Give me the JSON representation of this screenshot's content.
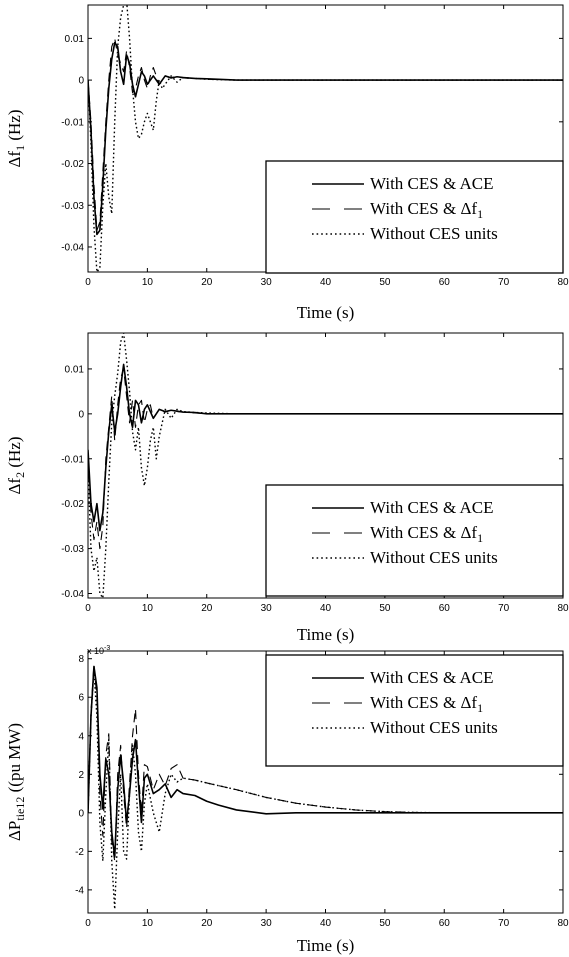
{
  "chart_data": [
    {
      "type": "line",
      "ylabel": "Δf1 (Hz)",
      "ylabel_parts": {
        "main": "Δf",
        "sub": "1",
        "unit": " (Hz)"
      },
      "xlabel": "Time (s)",
      "xlim": [
        0,
        80
      ],
      "ylim": [
        -0.046,
        0.018
      ],
      "xticks": [
        0,
        10,
        20,
        30,
        40,
        50,
        60,
        70,
        80
      ],
      "yticks": [
        0.01,
        0,
        -0.01,
        -0.02,
        -0.03,
        -0.04
      ],
      "ytick_labels": [
        "0.01",
        "0",
        "-0.01",
        "-0.02",
        "-0.03",
        "-0.04"
      ],
      "grid": false,
      "legend_position": "bottom-right",
      "legend": [
        {
          "main": "With CES & ACE",
          "sub": "",
          "style": "solid"
        },
        {
          "main": "With CES & Δf",
          "sub": "1",
          "style": "dashed"
        },
        {
          "main": "Without CES units",
          "sub": "",
          "style": "dotted"
        }
      ],
      "series": [
        {
          "style": "solid",
          "x": [
            0,
            0.5,
            1,
            1.5,
            2,
            2.5,
            3,
            3.5,
            4,
            4.5,
            5,
            5.5,
            6,
            6.5,
            7,
            7.5,
            8,
            8.5,
            9,
            9.5,
            10,
            11,
            12,
            13,
            14,
            15,
            16,
            18,
            20,
            25,
            30,
            40,
            50,
            60,
            70,
            80
          ],
          "y": [
            0,
            -0.012,
            -0.028,
            -0.037,
            -0.036,
            -0.025,
            -0.012,
            -0.002,
            0.005,
            0.009,
            0.008,
            0.002,
            -0.001,
            0.006,
            0.004,
            -0.001,
            -0.004,
            -0.001,
            0.002,
            0.001,
            -0.001,
            0.001,
            -0.001,
            0.001,
            0.0005,
            0.0008,
            0.0006,
            0.0004,
            0.0003,
            0,
            0,
            0,
            0,
            0,
            0,
            0
          ]
        },
        {
          "style": "dashed",
          "x": [
            0,
            0.5,
            1,
            1.5,
            2,
            2.5,
            3,
            3.5,
            4,
            4.5,
            5,
            5.5,
            6,
            6.5,
            7,
            7.5,
            8,
            8.5,
            9,
            9.5,
            10,
            10.5,
            11,
            11.5,
            12,
            13,
            14,
            15,
            16,
            18,
            20,
            25,
            30,
            40,
            50,
            60,
            70,
            80
          ],
          "y": [
            0,
            -0.01,
            -0.025,
            -0.036,
            -0.034,
            -0.022,
            -0.01,
            0,
            0.008,
            0.01,
            0.006,
            0.004,
            0.002,
            0.007,
            0.003,
            -0.003,
            -0.002,
            0.001,
            0.003,
            0,
            -0.002,
            0.001,
            0.003,
            0.001,
            -0.001,
            0.001,
            0.0006,
            0.0009,
            0.0005,
            0.0004,
            0.0002,
            0,
            0,
            0,
            0,
            0,
            0,
            0
          ]
        },
        {
          "style": "dotted",
          "x": [
            0,
            0.5,
            1,
            1.5,
            2,
            2.5,
            3,
            3.5,
            4,
            4.5,
            5,
            5.5,
            6,
            6.5,
            7,
            7.5,
            8,
            8.5,
            9,
            9.5,
            10,
            10.5,
            11,
            11.5,
            12,
            12.5,
            13,
            14,
            15,
            16,
            18,
            20,
            25,
            30,
            40,
            50,
            60,
            70,
            80
          ],
          "y": [
            0,
            -0.015,
            -0.035,
            -0.046,
            -0.045,
            -0.03,
            -0.02,
            -0.028,
            -0.032,
            -0.01,
            0.008,
            0.015,
            0.018,
            0.019,
            0.01,
            -0.002,
            -0.01,
            -0.014,
            -0.013,
            -0.01,
            -0.008,
            -0.01,
            -0.012,
            -0.005,
            0,
            -0.002,
            -0.001,
            0.001,
            -0.0005,
            0.0006,
            0.0004,
            0.0002,
            0,
            0,
            0,
            0,
            0,
            0,
            0
          ]
        }
      ]
    },
    {
      "type": "line",
      "ylabel": "Δf2 (Hz)",
      "ylabel_parts": {
        "main": "Δf",
        "sub": "2",
        "unit": " (Hz)"
      },
      "xlabel": "Time (s)",
      "xlim": [
        0,
        80
      ],
      "ylim": [
        -0.041,
        0.018
      ],
      "xticks": [
        0,
        10,
        20,
        30,
        40,
        50,
        60,
        70,
        80
      ],
      "yticks": [
        0.01,
        0,
        -0.01,
        -0.02,
        -0.03,
        -0.04
      ],
      "ytick_labels": [
        "0.01",
        "0",
        "-0.01",
        "-0.02",
        "-0.03",
        "-0.04"
      ],
      "grid": false,
      "legend_position": "bottom-right",
      "legend": [
        {
          "main": "With CES & ACE",
          "sub": "",
          "style": "solid"
        },
        {
          "main": "With CES & Δf",
          "sub": "1",
          "style": "dashed"
        },
        {
          "main": "Without CES units",
          "sub": "",
          "style": "dotted"
        }
      ],
      "series": [
        {
          "style": "solid",
          "x": [
            0,
            0.5,
            1,
            1.5,
            2,
            2.5,
            3,
            3.5,
            4,
            4.5,
            5,
            5.5,
            6,
            6.5,
            7,
            7.5,
            8,
            8.5,
            9,
            9.5,
            10,
            11,
            12,
            13,
            14,
            15,
            16,
            18,
            20,
            25,
            30,
            40,
            50,
            60,
            70,
            80
          ],
          "y": [
            -0.008,
            -0.02,
            -0.024,
            -0.02,
            -0.026,
            -0.022,
            -0.012,
            -0.004,
            0.002,
            -0.004,
            0,
            0.006,
            0.011,
            0.006,
            0,
            -0.003,
            0.003,
            0.002,
            -0.002,
            0.001,
            0.002,
            -0.001,
            0.001,
            0.0005,
            0.0008,
            0.0006,
            0.0004,
            0.0003,
            0,
            0,
            0,
            0,
            0,
            0,
            0,
            0
          ]
        },
        {
          "style": "dashed",
          "x": [
            0,
            0.5,
            1,
            1.5,
            2,
            2.5,
            3,
            3.5,
            4,
            4.5,
            5,
            5.5,
            6,
            6.5,
            7,
            7.5,
            8,
            8.5,
            9,
            9.5,
            10,
            10.5,
            11,
            12,
            13,
            14,
            15,
            16,
            18,
            20,
            25,
            30,
            40,
            50,
            60,
            70,
            80
          ],
          "y": [
            -0.01,
            -0.022,
            -0.028,
            -0.024,
            -0.03,
            -0.025,
            -0.01,
            -0.003,
            0.004,
            -0.006,
            0.002,
            0.008,
            0.01,
            0.004,
            -0.002,
            0.003,
            -0.003,
            0.002,
            0.003,
            -0.002,
            0.001,
            0.002,
            -0.001,
            0.001,
            0.0004,
            0.0008,
            0.0005,
            0.0004,
            0.0002,
            0,
            0,
            0,
            0,
            0,
            0,
            0,
            0
          ]
        },
        {
          "style": "dotted",
          "x": [
            0,
            0.5,
            1,
            1.5,
            2,
            2.5,
            3,
            3.5,
            4,
            4.5,
            5,
            5.5,
            6,
            6.5,
            7,
            7.5,
            8,
            8.5,
            9,
            9.5,
            10,
            10.5,
            11,
            11.5,
            12,
            12.5,
            13,
            14,
            15,
            16,
            18,
            20,
            25,
            30,
            40,
            50,
            60,
            70,
            80
          ],
          "y": [
            -0.012,
            -0.03,
            -0.035,
            -0.032,
            -0.04,
            -0.041,
            -0.03,
            -0.015,
            -0.002,
            0.004,
            0.009,
            0.016,
            0.018,
            0.012,
            0.005,
            -0.004,
            -0.008,
            -0.003,
            -0.012,
            -0.016,
            -0.012,
            -0.006,
            -0.003,
            -0.01,
            -0.005,
            -0.002,
            0.001,
            -0.001,
            0.001,
            0.0005,
            0.0003,
            0.0002,
            0,
            0,
            0,
            0,
            0,
            0,
            0
          ]
        }
      ]
    },
    {
      "type": "line",
      "ylabel": "ΔPtie12 ((pu MW)",
      "ylabel_parts": {
        "main": "ΔP",
        "sub": "tie12",
        "unit": " ((pu MW)"
      },
      "xlabel": "Time (s)",
      "xlim": [
        0,
        80
      ],
      "ylim": [
        -5.2,
        8.4
      ],
      "y_multiplier": "x 10",
      "y_exponent": "-3",
      "xticks": [
        0,
        10,
        20,
        30,
        40,
        50,
        60,
        70,
        80
      ],
      "yticks": [
        8,
        6,
        4,
        2,
        0,
        -2,
        -4
      ],
      "ytick_labels": [
        "8",
        "6",
        "4",
        "2",
        "0",
        "-2",
        "-4"
      ],
      "grid": false,
      "legend_position": "top-right",
      "legend": [
        {
          "main": "With CES & ACE",
          "sub": "",
          "style": "solid"
        },
        {
          "main": "With CES & Δf",
          "sub": "1",
          "style": "dashed"
        },
        {
          "main": "Without CES units",
          "sub": "",
          "style": "dotted"
        }
      ],
      "series": [
        {
          "style": "solid",
          "x": [
            0,
            0.5,
            1,
            1.5,
            2,
            2.5,
            3,
            3.5,
            4,
            4.5,
            5,
            5.5,
            6,
            6.5,
            7,
            7.5,
            8,
            8.5,
            9,
            9.5,
            10,
            11,
            12,
            13,
            14,
            15,
            16,
            18,
            20,
            22,
            25,
            30,
            35,
            40,
            50,
            60,
            70,
            80
          ],
          "y": [
            0,
            5,
            7.6,
            6.5,
            2,
            0.2,
            2.8,
            2,
            -1,
            -2.3,
            1.2,
            3,
            1.5,
            -0.5,
            1,
            2.8,
            3.8,
            1.5,
            -0.5,
            1.8,
            2,
            1,
            1.2,
            1.5,
            0.8,
            1.2,
            1,
            0.9,
            0.6,
            0.4,
            0.15,
            -0.05,
            0,
            0,
            0,
            0,
            0,
            0
          ]
        },
        {
          "style": "dashed",
          "x": [
            0,
            0.5,
            1,
            1.5,
            2,
            2.5,
            3,
            3.5,
            4,
            4.5,
            5,
            5.5,
            6,
            6.5,
            7,
            7.5,
            8,
            8.5,
            9,
            9.5,
            10,
            11,
            12,
            13,
            14,
            15,
            16,
            18,
            20,
            25,
            30,
            35,
            40,
            45,
            50,
            55,
            60,
            70,
            80
          ],
          "y": [
            0,
            5.2,
            7.7,
            6,
            1,
            -1.2,
            3,
            4.1,
            -1.5,
            -2.5,
            2,
            3.5,
            1,
            -0.8,
            1.5,
            4,
            5.4,
            2,
            0,
            2.5,
            2.4,
            1.2,
            2,
            1.4,
            2.3,
            2.5,
            1.8,
            1.7,
            1.55,
            1.2,
            0.8,
            0.5,
            0.3,
            0.15,
            0.06,
            0.02,
            0,
            0,
            0
          ]
        },
        {
          "style": "dotted",
          "x": [
            0,
            0.5,
            1,
            1.5,
            2,
            2.5,
            3,
            3.5,
            4,
            4.5,
            5,
            5.5,
            6,
            6.5,
            7,
            7.5,
            8,
            8.5,
            9,
            9.5,
            10,
            11,
            12,
            13,
            14,
            15,
            16,
            18,
            20,
            25,
            30,
            35,
            40,
            45,
            50,
            55,
            60,
            70,
            80
          ],
          "y": [
            0,
            5,
            7.4,
            5,
            -0.5,
            -2.5,
            1,
            3.8,
            -2.5,
            -5,
            -1,
            2,
            -2,
            -2.4,
            1,
            3.5,
            2,
            -1,
            -2,
            0.5,
            1.5,
            0,
            -1,
            1,
            2,
            1.6,
            1.8,
            1.7,
            1.55,
            1.2,
            0.8,
            0.5,
            0.3,
            0.15,
            0.06,
            0.02,
            0,
            0,
            0
          ]
        }
      ]
    }
  ]
}
